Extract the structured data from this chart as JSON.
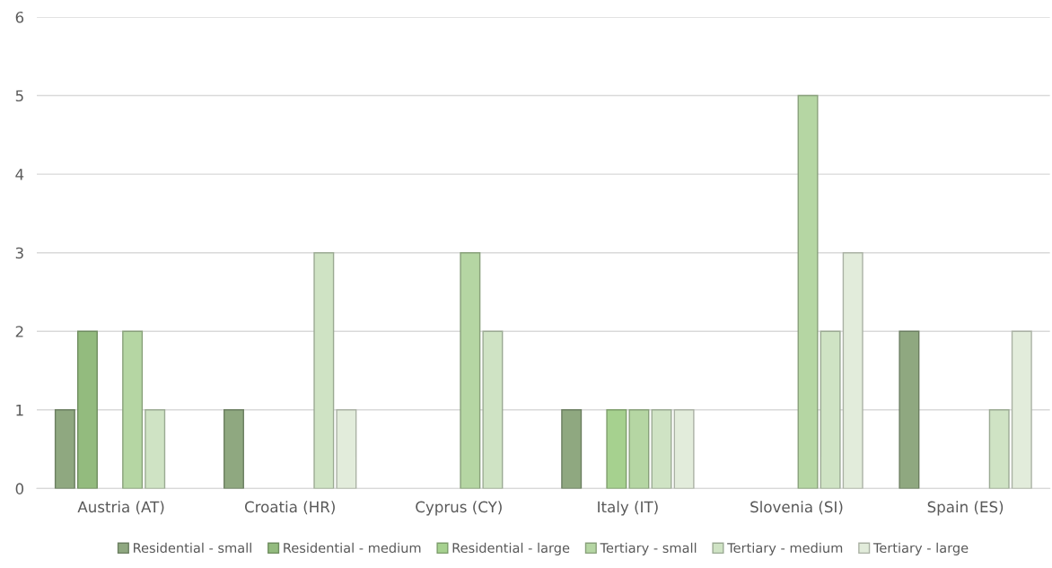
{
  "chart_data": {
    "type": "bar",
    "categories": [
      "Austria (AT)",
      "Croatia (HR)",
      "Cyprus (CY)",
      "Italy (IT)",
      "Slovenia (SI)",
      "Spain (ES)"
    ],
    "series": [
      {
        "name": "Residential - small",
        "color": "#8fa880",
        "values": [
          1,
          1,
          0,
          1,
          0,
          2
        ]
      },
      {
        "name": "Residential - medium",
        "color": "#93bb7e",
        "values": [
          2,
          0,
          0,
          0,
          0,
          0
        ]
      },
      {
        "name": "Residential - large",
        "color": "#a6d18f",
        "values": [
          0,
          0,
          0,
          1,
          0,
          0
        ]
      },
      {
        "name": "Tertiary - small",
        "color": "#b5d6a3",
        "values": [
          2,
          0,
          3,
          1,
          5,
          0
        ]
      },
      {
        "name": "Tertiary - medium",
        "color": "#cfe3c4",
        "values": [
          1,
          3,
          2,
          1,
          2,
          1
        ]
      },
      {
        "name": "Tertiary - large",
        "color": "#e2ecdb",
        "values": [
          0,
          1,
          0,
          1,
          3,
          2
        ]
      }
    ],
    "ylim": [
      0,
      6
    ],
    "yticks": [
      0,
      1,
      2,
      3,
      4,
      5,
      6
    ],
    "grid": "y",
    "legend": "bottom"
  }
}
